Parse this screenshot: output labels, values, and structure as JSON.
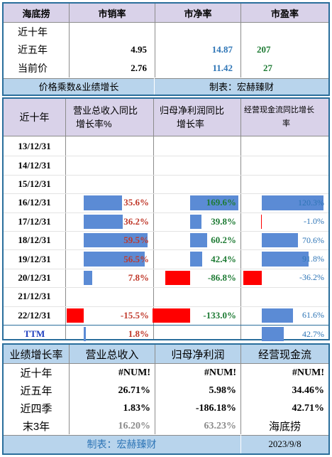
{
  "colors": {
    "header_bg": "#d9d2e9",
    "subheader_bg": "#b8d4ec",
    "frame": "#2a6e9c",
    "pos_bar": "#5b8bd5",
    "neg_bar": "#ff0000",
    "red_text": "#c0392b",
    "blue_text": "#2e75b6",
    "green_text": "#1e7b34"
  },
  "valuation": {
    "headers": [
      "海底捞",
      "市销率",
      "市净率",
      "市盈率"
    ],
    "rows": [
      {
        "label": "近十年",
        "ps": "",
        "pb": "",
        "pe": ""
      },
      {
        "label": "近五年",
        "ps": "4.95",
        "pb": "14.87",
        "pe": "207"
      },
      {
        "label": "当前价",
        "ps": "2.76",
        "pb": "11.42",
        "pe": "27"
      }
    ],
    "banner_left": "价格乘数&业绩增长",
    "banner_right": "制表：宏赫臻财"
  },
  "growth": {
    "headers": [
      "近十年",
      "营业总收入同比增长率%",
      "归母净利润同比增长率",
      "经营现金流同比增长率"
    ],
    "header_lines": [
      [
        "近十年"
      ],
      [
        "营业总收入同比",
        "增长率%"
      ],
      [
        "归母净利润同比",
        "增长率"
      ],
      [
        "经营现金流同比增长",
        "率"
      ]
    ],
    "rows": [
      {
        "date": "13/12/31",
        "rev": "",
        "np": "",
        "cf": ""
      },
      {
        "date": "14/12/31",
        "rev": "",
        "np": "",
        "cf": ""
      },
      {
        "date": "15/12/31",
        "rev": "",
        "np": "",
        "cf": ""
      },
      {
        "date": "16/12/31",
        "rev": "35.6%",
        "np": "169.6%",
        "cf": "120.3%"
      },
      {
        "date": "17/12/31",
        "rev": "36.2%",
        "np": "39.8%",
        "cf": "-1.0%"
      },
      {
        "date": "18/12/31",
        "rev": "59.5%",
        "np": "60.2%",
        "cf": "70.6%"
      },
      {
        "date": "19/12/31",
        "rev": "56.5%",
        "np": "42.4%",
        "cf": "91.8%"
      },
      {
        "date": "20/12/31",
        "rev": "7.8%",
        "np": "-86.8%",
        "cf": "-36.2%"
      },
      {
        "date": "21/12/31",
        "rev": "",
        "np": "",
        "cf": ""
      },
      {
        "date": "22/12/31",
        "rev": "-15.5%",
        "np": "-133.0%",
        "cf": "61.6%"
      }
    ],
    "ttm": {
      "date": "TTM",
      "rev": "1.8%",
      "np": "",
      "cf": "42.7%"
    }
  },
  "chart_data": {
    "type": "bar",
    "categories": [
      "13/12/31",
      "14/12/31",
      "15/12/31",
      "16/12/31",
      "17/12/31",
      "18/12/31",
      "19/12/31",
      "20/12/31",
      "21/12/31",
      "22/12/31",
      "TTM"
    ],
    "series": [
      {
        "name": "营业总收入同比增长率%",
        "values": [
          null,
          null,
          null,
          35.6,
          36.2,
          59.5,
          56.5,
          7.8,
          null,
          -15.5,
          1.8
        ]
      },
      {
        "name": "归母净利润同比增长率",
        "values": [
          null,
          null,
          null,
          169.6,
          39.8,
          60.2,
          42.4,
          -86.8,
          null,
          -133.0,
          null
        ]
      },
      {
        "name": "经营现金流同比增长率",
        "values": [
          null,
          null,
          null,
          120.3,
          -1.0,
          70.6,
          91.8,
          -36.2,
          null,
          61.6,
          42.7
        ]
      }
    ]
  },
  "summary": {
    "headers": [
      "业绩增长率",
      "营业总收入",
      "归母净利润",
      "经营现金流"
    ],
    "rows": [
      {
        "label": "近十年",
        "rev": "#NUM!",
        "np": "#NUM!",
        "cf": "#NUM!"
      },
      {
        "label": "近五年",
        "rev": "26.71%",
        "np": "5.98%",
        "cf": "34.46%"
      },
      {
        "label": "近四季",
        "rev": "1.83%",
        "np": "-186.18%",
        "cf": "42.71%"
      },
      {
        "label": "末3年",
        "rev": "16.20%",
        "np": "63.23%",
        "cf": "海底捞"
      }
    ],
    "footer_left": "制表：宏赫臻财",
    "footer_right": "2023/9/8"
  }
}
